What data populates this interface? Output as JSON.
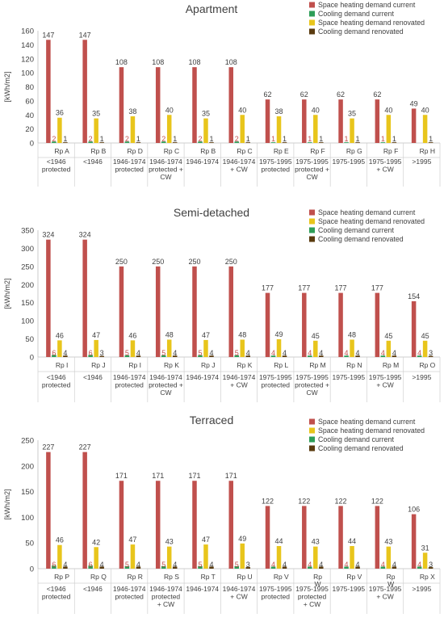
{
  "chart_data": [
    {
      "type": "bar",
      "title": "Apartment",
      "ylabel": "[kWh/m2]",
      "ylim": [
        0,
        160
      ],
      "yticks": [
        0,
        20,
        40,
        60,
        80,
        100,
        120,
        140,
        160
      ],
      "legend_position": "top-right",
      "categories": [
        "Rp A",
        "Rp B",
        "Rp D",
        "Rp C",
        "Rp B",
        "Rp C",
        "Rp E",
        "Rp F",
        "Rp G",
        "Rp F",
        "Rp H"
      ],
      "group_labels": [
        "<1946\nprotected",
        "<1946",
        "1946-1974\nprotected",
        "1946-1974\nprotected +\nCW",
        "1946-1974",
        "1946-1974\n+ CW",
        "1975-1995\nprotected",
        "1975-1995\nprotected +\nCW",
        "1975-1995",
        "1975-1995\n+ CW",
        ">1995"
      ],
      "series": [
        {
          "name": "Space heating demand current",
          "color": "#c0504d",
          "values": [
            147,
            147,
            108,
            108,
            108,
            108,
            62,
            62,
            62,
            62,
            49
          ]
        },
        {
          "name": "Cooling demand current",
          "color": "#2e9e58",
          "values": [
            2,
            2,
            2,
            2,
            2,
            2,
            1,
            1,
            1,
            1,
            0
          ]
        },
        {
          "name": "Space heating demand renovated",
          "color": "#e8c51c",
          "values": [
            36,
            35,
            38,
            40,
            35,
            40,
            38,
            40,
            35,
            40,
            40
          ]
        },
        {
          "name": "Cooling demand renovated",
          "color": "#5a3b0f",
          "values": [
            1,
            1,
            1,
            1,
            1,
            1,
            1,
            1,
            1,
            1,
            1
          ]
        }
      ],
      "value_labels": [
        [
          "147",
          "147",
          "108",
          "108",
          "108",
          "108",
          "62",
          "62",
          "62",
          "62",
          "49"
        ],
        [
          "2",
          "2",
          "2",
          "2",
          "2",
          "2",
          "1",
          "1",
          "1",
          "1",
          ""
        ],
        [
          "36",
          "35",
          "38",
          "40",
          "35",
          "40",
          "38",
          "40",
          "35",
          "40",
          "40"
        ],
        [
          "1",
          "1",
          "1",
          "1",
          "1",
          "1",
          "1",
          "1",
          "1",
          "1",
          "1"
        ]
      ]
    },
    {
      "type": "bar",
      "title": "Semi-detached",
      "ylabel": "[kWh/m2]",
      "ylim": [
        0,
        350
      ],
      "yticks": [
        0,
        50,
        100,
        150,
        200,
        250,
        300,
        350
      ],
      "legend_position": "top-right",
      "categories": [
        "Rp I",
        "Rp J",
        "Rp I",
        "Rp K",
        "Rp J",
        "Rp K",
        "Rp L",
        "Rp M",
        "Rp N",
        "Rp M",
        "Rp O"
      ],
      "group_labels": [
        "<1946\nprotected",
        "<1946",
        "1946-1974\nprotected",
        "1946-1974\nprotected +\nCW",
        "1946-1974",
        "1946-1974\n+ CW",
        "1975-1995\nprotected",
        "1975-1995\nprotected +\nCW",
        "1975-1995",
        "1975-1995\n+ CW",
        ">1995"
      ],
      "series": [
        {
          "name": "Space heating demand current",
          "color": "#c0504d",
          "values": [
            324,
            324,
            250,
            250,
            250,
            250,
            177,
            177,
            177,
            177,
            154
          ]
        },
        {
          "name": "Cooling demand current",
          "color": "#2e9e58",
          "values": [
            6,
            6,
            5,
            5,
            5,
            5,
            4,
            4,
            4,
            4,
            4
          ]
        },
        {
          "name": "Space heating demand renovated",
          "color": "#e8c51c",
          "values": [
            46,
            47,
            46,
            48,
            47,
            48,
            49,
            45,
            48,
            45,
            45
          ]
        },
        {
          "name": "Cooling demand renovated",
          "color": "#5a3b0f",
          "values": [
            4,
            3,
            4,
            4,
            4,
            4,
            4,
            4,
            4,
            4,
            3
          ]
        }
      ],
      "value_labels": [
        [
          "324",
          "324",
          "250",
          "250",
          "250",
          "250",
          "177",
          "177",
          "177",
          "177",
          "154"
        ],
        [
          "6",
          "6",
          "5",
          "5",
          "5",
          "5",
          "4",
          "4",
          "4",
          "4",
          "4"
        ],
        [
          "46",
          "47",
          "46",
          "48",
          "47",
          "48",
          "49",
          "45",
          "48",
          "45",
          "45"
        ],
        [
          "4",
          "3",
          "4",
          "4",
          "4",
          "4",
          "4",
          "4",
          "4",
          "4",
          "3"
        ]
      ]
    },
    {
      "type": "bar",
      "title": "Terraced",
      "ylabel": "[kWh/m2]",
      "ylim": [
        0,
        250
      ],
      "yticks": [
        0,
        50,
        100,
        150,
        200,
        250
      ],
      "legend_position": "top-right",
      "categories": [
        "Rp P",
        "Rp Q",
        "Rp R",
        "Rp S",
        "Rp T",
        "Rp U",
        "Rp V",
        "Rp\nW",
        "Rp V",
        "Rp\nW",
        "Rp X"
      ],
      "group_labels": [
        "<1946\nprotected",
        "<1946",
        "1946-1974\nprotected",
        "1946-1974\nprotected\n+ CW",
        "1946-1974",
        "1946-1974\n+ CW",
        "1975-1995\nprotected",
        "1975-1995\nprotected\n+ CW",
        "1975-1995",
        "1975-1995\n+ CW",
        ">1995"
      ],
      "series": [
        {
          "name": "Space heating demand current",
          "color": "#c0504d",
          "values": [
            227,
            227,
            171,
            171,
            171,
            171,
            122,
            122,
            122,
            122,
            106
          ]
        },
        {
          "name": "Cooling demand current",
          "color": "#2e9e58",
          "values": [
            6,
            6,
            5,
            5,
            5,
            5,
            4,
            4,
            4,
            4,
            4
          ]
        },
        {
          "name": "Space heating demand renovated",
          "color": "#e8c51c",
          "values": [
            46,
            42,
            47,
            43,
            47,
            49,
            44,
            43,
            44,
            43,
            31
          ]
        },
        {
          "name": "Cooling demand renovated",
          "color": "#5a3b0f",
          "values": [
            4,
            4,
            4,
            4,
            4,
            3,
            4,
            4,
            4,
            4,
            3
          ]
        }
      ],
      "value_labels": [
        [
          "227",
          "227",
          "171",
          "171",
          "171",
          "171",
          "122",
          "122",
          "122",
          "122",
          "106"
        ],
        [
          "6",
          "6",
          "5",
          "5",
          "5",
          "5",
          "4",
          "4",
          "4",
          "4",
          "4"
        ],
        [
          "46",
          "42",
          "47",
          "43",
          "47",
          "49",
          "44",
          "43",
          "44",
          "43",
          "31"
        ],
        [
          "4",
          "4",
          "4",
          "4",
          "4",
          "3",
          "4",
          "4",
          "4",
          "4",
          "3"
        ]
      ]
    }
  ]
}
